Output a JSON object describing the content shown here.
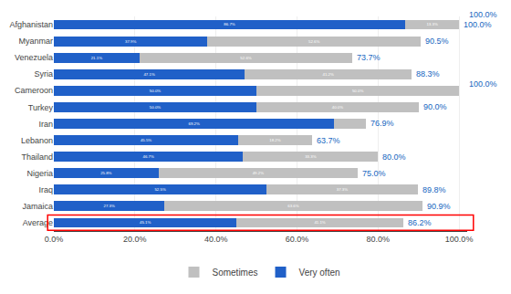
{
  "chart_data": {
    "type": "bar",
    "orientation": "horizontal",
    "stacked": true,
    "categories": [
      "Afghanistan",
      "Myanmar",
      "Venezuela",
      "Syria",
      "Cameroon",
      "Turkey",
      "Iran",
      "Lebanon",
      "Thailand",
      "Nigeria",
      "Iraq",
      "Jamaica",
      "Average"
    ],
    "series": [
      {
        "name": "Very often",
        "color": "#2060C8",
        "values": [
          86.7,
          37.9,
          21.1,
          47.1,
          50.0,
          50.0,
          69.2,
          45.5,
          46.7,
          25.8,
          52.5,
          27.3,
          45.1
        ],
        "value_labels": [
          "86.7%",
          "37.9%",
          "21.1%",
          "47.1%",
          "50.0%",
          "50.0%",
          "69.2%",
          "45.5%",
          "46.7%",
          "25.8%",
          "52.5%",
          "27.3%",
          "45.1%"
        ]
      },
      {
        "name": "Sometimes",
        "color": "#C0C0C0",
        "values": [
          13.3,
          52.6,
          52.6,
          41.2,
          50.0,
          40.0,
          7.7,
          18.2,
          33.3,
          49.2,
          37.3,
          63.6,
          41.1
        ],
        "value_labels": [
          "13.3%",
          "52.6%",
          "52.6%",
          "41.2%",
          "50.0%",
          "40.0%",
          null,
          "18.2%",
          "33.3%",
          "49.2%",
          "37.3%",
          "63.6%",
          "41.1%"
        ]
      }
    ],
    "totals": {
      "values": [
        100.0,
        90.5,
        73.7,
        88.3,
        100.0,
        90.0,
        76.9,
        63.7,
        80.0,
        75.0,
        89.8,
        90.9,
        86.2
      ],
      "labels": [
        "100.0%",
        "90.5%",
        "73.7%",
        "88.3%",
        null,
        "90.0%",
        "76.9%",
        "63.7%",
        "80.0%",
        "75.0%",
        "89.8%",
        "90.9%",
        "86.2%"
      ],
      "color": "#1565C0"
    },
    "xlim": [
      0,
      102
    ],
    "xticks": [
      {
        "value": 0,
        "label": "0.0%"
      },
      {
        "value": 20,
        "label": "20.0%"
      },
      {
        "value": 40,
        "label": "40.0%"
      },
      {
        "value": 60,
        "label": "60.0%"
      },
      {
        "value": 80,
        "label": "80.0%"
      },
      {
        "value": 100,
        "label": "100.0%"
      }
    ],
    "grid": true,
    "legend": "bottom",
    "data_labels": true,
    "annotations": [
      {
        "text": "100.0%",
        "category": "Afghanistan",
        "position": "above",
        "color": "#1565C0"
      },
      {
        "text": "100.0%",
        "category": "Syria",
        "position": "below",
        "color": "#1565C0"
      },
      {
        "type": "box",
        "category": "Average",
        "color": "#FF0000"
      }
    ]
  }
}
